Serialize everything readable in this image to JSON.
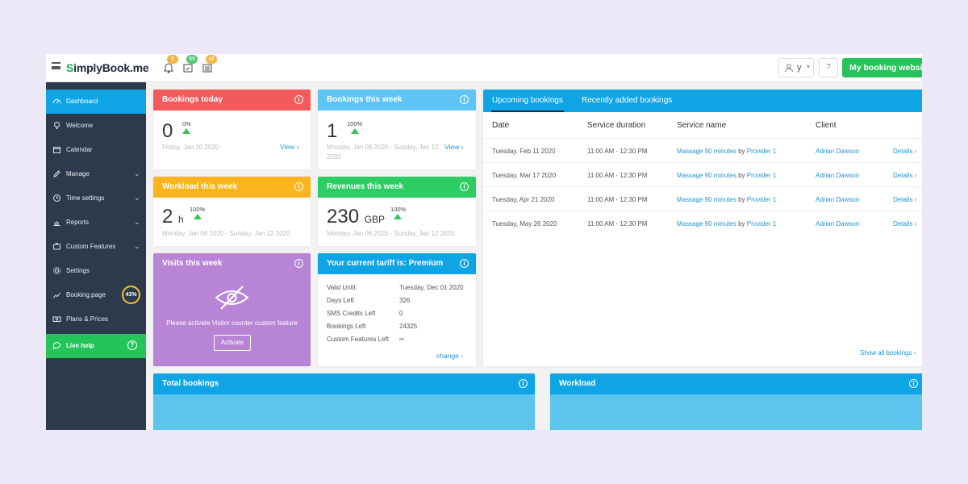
{
  "topbar": {
    "logo_first": "S",
    "logo_rest": "implyBook",
    "logo_suffix": ".me",
    "notif_count": "5",
    "calendar_count": "89",
    "bookings_count": "all",
    "user_name": "y",
    "help_label": "?",
    "booking_site_label": "My booking website",
    "badge_colors": [
      "#f2b544",
      "#57c472",
      "#f2b544"
    ]
  },
  "sidebar": {
    "items": [
      {
        "label": "Dashboard",
        "icon": "dashboard-icon"
      },
      {
        "label": "Welcome",
        "icon": "bulb-icon"
      },
      {
        "label": "Calendar",
        "icon": "calendar-icon"
      },
      {
        "label": "Manage",
        "icon": "pencil-icon"
      },
      {
        "label": "Time settings",
        "icon": "clock-icon"
      },
      {
        "label": "Reports",
        "icon": "bar-chart-icon"
      },
      {
        "label": "Custom Features",
        "icon": "puzzle-icon"
      },
      {
        "label": "Settings",
        "icon": "gear-icon"
      },
      {
        "label": "Booking.page",
        "icon": "chart-up-icon"
      },
      {
        "label": "Plans & Prices",
        "icon": "money-icon"
      },
      {
        "label": "Live help",
        "icon": "chat-icon"
      }
    ],
    "booking_page_progress": "43%",
    "live_help_q": "?"
  },
  "cards": {
    "bookings_today": {
      "title": "Bookings today",
      "value": "0",
      "pct": "0%",
      "date": "Friday, Jan 10 2020",
      "link": "View",
      "color": "#f25a5c"
    },
    "bookings_week": {
      "title": "Bookings this week",
      "value": "1",
      "pct": "100%",
      "date": "Monday, Jan 06 2020 - Sunday, Jan 12 2020",
      "link": "View",
      "color": "#5dc4f5"
    },
    "workload_week": {
      "title": "Workload this week",
      "value": "2",
      "unit": "h",
      "pct": "100%",
      "date": "Monday, Jan 06 2020 - Sunday, Jan 12 2020",
      "color": "#fbb41e"
    },
    "revenues_week": {
      "title": "Revenues this week",
      "value": "230",
      "unit": "GBP",
      "pct": "100%",
      "date": "Monday, Jan 06 2020 - Sunday, Jan 12 2020",
      "color": "#2ccd63"
    },
    "visits_week": {
      "title": "Visits this week",
      "message": "Please activate Visitor counter custom feature",
      "button": "Activate",
      "color": "#b784d6"
    },
    "tariff": {
      "title": "Your current tariff is: Premium",
      "rows": [
        {
          "label": "Valid Until:",
          "value": "Tuesday, Dec 01 2020"
        },
        {
          "label": "Days Left",
          "value": "326"
        },
        {
          "label": "SMS Credits Left",
          "value": "0"
        },
        {
          "label": "Bookings Left",
          "value": "24325"
        },
        {
          "label": "Custom Features Left",
          "value": "∞"
        }
      ],
      "link": "change",
      "color": "#0fa5e4"
    }
  },
  "bookings_panel": {
    "tabs": [
      "Upcoming bookings",
      "Recently added bookings"
    ],
    "columns": [
      "Date",
      "Service duration",
      "Service name",
      "Client"
    ],
    "rows": [
      {
        "date": "Tuesday, Feb 11 2020",
        "duration": "11:00 AM - 12:30 PM",
        "service": "Massage 90 minutes",
        "by": "by",
        "provider": "Provider 1",
        "client": "Adrian Dawson",
        "details": "Details"
      },
      {
        "date": "Tuesday, Mar 17 2020",
        "duration": "11:00 AM - 12:30 PM",
        "service": "Massage 90 minutes",
        "by": "by",
        "provider": "Provider 1",
        "client": "Adrian Dawson",
        "details": "Details"
      },
      {
        "date": "Tuesday, Apr 21 2020",
        "duration": "11:00 AM - 12:30 PM",
        "service": "Massage 90 minutes",
        "by": "by",
        "provider": "Provider 1",
        "client": "Adrian Dawson",
        "details": "Details"
      },
      {
        "date": "Tuesday, May 26 2020",
        "duration": "11:00 AM - 12:30 PM",
        "service": "Massage 90 minutes",
        "by": "by",
        "provider": "Provider 1",
        "client": "Adrian Dawson",
        "details": "Details"
      }
    ],
    "show_all": "Show all bookings"
  },
  "bottom": {
    "total_bookings": "Total bookings",
    "workload": "Workload"
  },
  "info_glyph": "i",
  "chevron": "›"
}
